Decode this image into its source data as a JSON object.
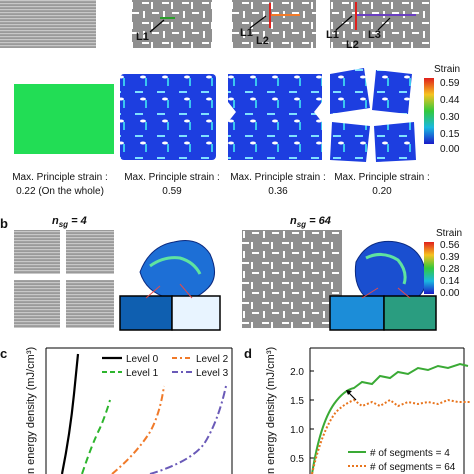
{
  "panel_a": {
    "labels": [
      "L1",
      "L2",
      "L3"
    ],
    "captions": [
      {
        "line1": "Max. Principle strain :",
        "line2": "0.22 (On the whole)"
      },
      {
        "line1": "Max. Principle strain :",
        "line2": "0.59"
      },
      {
        "line1": "Max. Principle strain :",
        "line2": "0.36"
      },
      {
        "line1": "Max. Principle strain :",
        "line2": "0.20"
      }
    ],
    "colorbar": {
      "title": "Strain",
      "ticks": [
        "0.59",
        "0.44",
        "0.30",
        "0.15",
        "0.00"
      ]
    }
  },
  "panel_b": {
    "letter": "b",
    "nsg_left": "n_sg = 4",
    "nsg_left_parts": {
      "n": "n",
      "sub": "sg",
      "eq": " = 4"
    },
    "nsg_right_parts": {
      "n": "n",
      "sub": "sg",
      "eq": " = 64"
    },
    "colorbar": {
      "title": "Strain",
      "ticks": [
        "0.56",
        "0.39",
        "0.28",
        "0.14",
        "0.00"
      ]
    }
  },
  "panel_c": {
    "letter": "c",
    "ylabel": "n energy density (mJ/cm³)",
    "legend": [
      "Level 0",
      "Level 2",
      "Level 1",
      "Level 3"
    ],
    "colors": {
      "level0": "#000000",
      "level1": "#2db52d",
      "level2": "#f07a2a",
      "level3": "#6a5ab8"
    }
  },
  "panel_d": {
    "letter": "d",
    "ylabel": "n energy density (mJ/cm³)",
    "yticks": [
      "2.0",
      "1.5",
      "1.0",
      "0.5"
    ],
    "legend": [
      "# of segments = 4",
      "# of segments = 64"
    ],
    "colors": {
      "seg4": "#3aaa35",
      "seg64": "#e8751e"
    }
  }
}
